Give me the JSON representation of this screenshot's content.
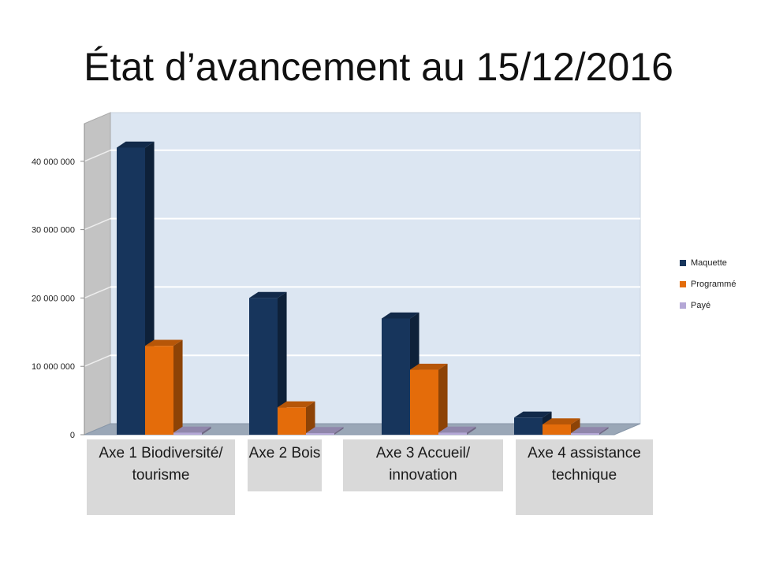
{
  "title": "État d’avancement au 15/12/2016",
  "colors": {
    "maquette": "#17355c",
    "programme": "#e46c0a",
    "paye": "#b4a7d6",
    "wall": "#dce6f2",
    "floor": "#9aa7b7"
  },
  "legend": [
    "Maquette",
    "Programmé",
    "Payé"
  ],
  "categories_display": [
    "Axe 1 Biodiversité/ tourisme",
    "Axe 2 Bois",
    "Axe 3 Accueil/ innovation",
    "Axe 4 assistance technique"
  ],
  "chart_data": {
    "type": "bar",
    "title": "État d’avancement au 15/12/2016",
    "categories": [
      "Axe 1 Biodiversité/ tourisme",
      "Axe 2 Bois",
      "Axe 3 Accueil/ innovation",
      "Axe 4 assistance technique"
    ],
    "series": [
      {
        "name": "Maquette",
        "values": [
          42000000,
          20000000,
          17000000,
          2500000
        ]
      },
      {
        "name": "Programmé",
        "values": [
          13000000,
          4000000,
          9500000,
          1500000
        ]
      },
      {
        "name": "Payé",
        "values": [
          300000,
          100000,
          300000,
          50000
        ]
      }
    ],
    "ylim": [
      0,
      40000000
    ],
    "yticks": [
      0,
      10000000,
      20000000,
      30000000,
      40000000
    ],
    "ytick_labels": [
      "0",
      "10 000 000",
      "20 000 000",
      "30 000 000",
      "40 000 000"
    ],
    "grid": true,
    "legend_position": "right",
    "style": "3d-column"
  }
}
